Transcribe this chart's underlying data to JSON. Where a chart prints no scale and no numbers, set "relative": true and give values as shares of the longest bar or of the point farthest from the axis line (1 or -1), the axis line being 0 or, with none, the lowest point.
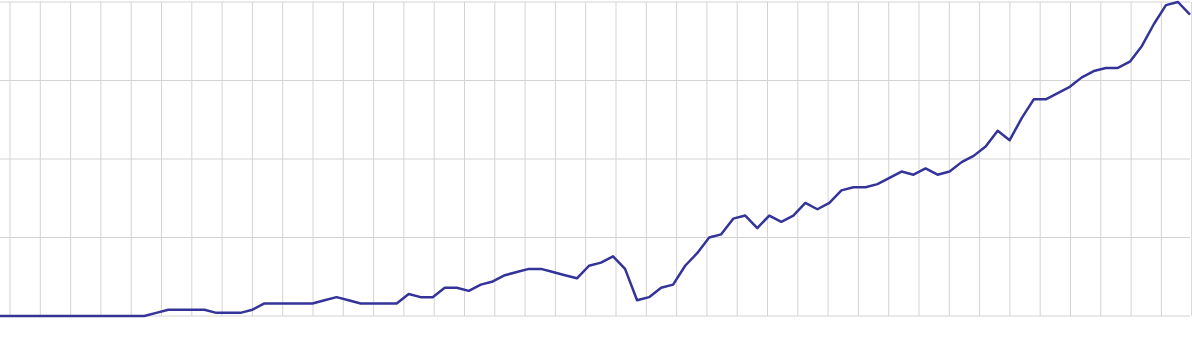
{
  "chart_data": {
    "type": "line",
    "relative": true,
    "grid": true,
    "marker": "none",
    "line_style": "solid",
    "categories": [
      null,
      null,
      null,
      null,
      null,
      null,
      null,
      null,
      null,
      null,
      null,
      null,
      null,
      null,
      null,
      null,
      null,
      null,
      null,
      null,
      null,
      null,
      null,
      null,
      null,
      null,
      null,
      null,
      null,
      null,
      null,
      null,
      null,
      null,
      null,
      null,
      null,
      null,
      null,
      null,
      null,
      null,
      null,
      null,
      null,
      null,
      null,
      null,
      null,
      null,
      null,
      null,
      null,
      null,
      null,
      null,
      null,
      null,
      null,
      null,
      null,
      null,
      null,
      null,
      null,
      null,
      null,
      null,
      null,
      null,
      null,
      null,
      null,
      null,
      null,
      null,
      null,
      null,
      null,
      null,
      null,
      null,
      null,
      null,
      null,
      null,
      null,
      null,
      null,
      null,
      null,
      null,
      null,
      null,
      null,
      null,
      null,
      null,
      null,
      null
    ],
    "series": [
      {
        "color": "#333399",
        "values": [
          0,
          0,
          0,
          0,
          0,
          0,
          0,
          0,
          0,
          0,
          0,
          0,
          0,
          0.01,
          0.02,
          0.02,
          0.02,
          0.02,
          0.01,
          0.01,
          0.01,
          0.02,
          0.04,
          0.04,
          0.04,
          0.04,
          0.04,
          0.05,
          0.06,
          0.05,
          0.04,
          0.04,
          0.04,
          0.04,
          0.07,
          0.06,
          0.06,
          0.09,
          0.09,
          0.08,
          0.1,
          0.11,
          0.13,
          0.14,
          0.15,
          0.15,
          0.14,
          0.13,
          0.12,
          0.16,
          0.17,
          0.19,
          0.15,
          0.05,
          0.06,
          0.09,
          0.1,
          0.16,
          0.2,
          0.25,
          0.26,
          0.31,
          0.32,
          0.28,
          0.32,
          0.3,
          0.32,
          0.36,
          0.34,
          0.36,
          0.4,
          0.41,
          0.41,
          0.42,
          0.44,
          0.46,
          0.45,
          0.47,
          0.45,
          0.46,
          0.49,
          0.51,
          0.54,
          0.59,
          0.56,
          0.63,
          0.69,
          0.69,
          0.71,
          0.73,
          0.76,
          0.78,
          0.79,
          0.79,
          0.81,
          0.86,
          0.93,
          0.99,
          1,
          0.96
        ]
      }
    ]
  }
}
